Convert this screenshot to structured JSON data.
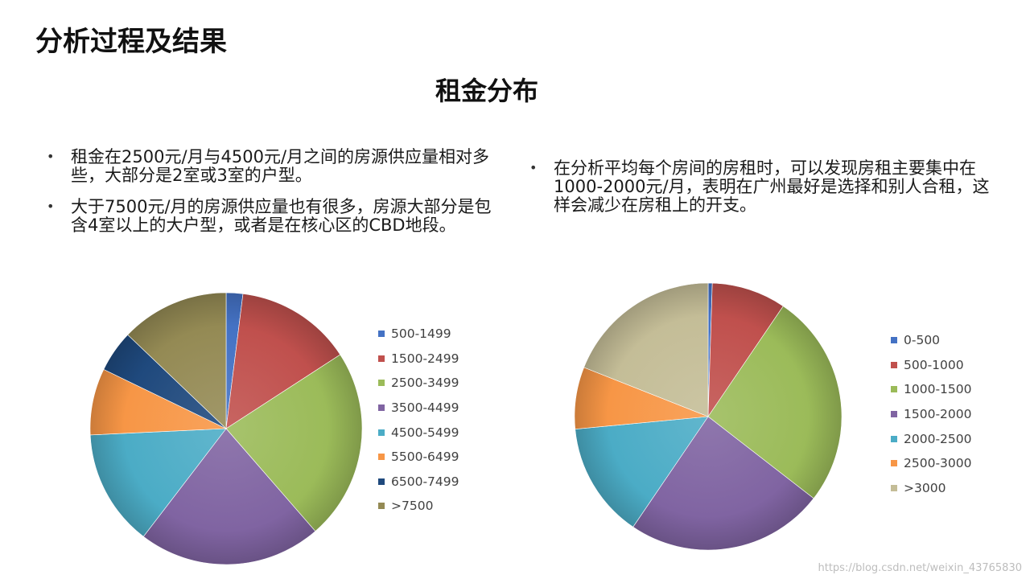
{
  "slide": {
    "title": "分析过程及结果"
  },
  "chart_title": "租金分布",
  "bullets_left": [
    "租金在2500元/月与4500元/月之间的房源供应量相对多些，大部分是2室或3室的户型。",
    "大于7500元/月的房源供应量也有很多，房源大部分是包含4室以上的大户型，或者是在核心区的CBD地段。"
  ],
  "bullets_right": [
    "在分析平均每个房间的房租时，可以发现房租主要集中在1000-2000元/月，表明在广州最好是选择和别人合租，这样会减少在房租上的开支。"
  ],
  "bullet_symbol": "•",
  "watermark": "https://blog.csdn.net/weixin_43765830",
  "chart_data": [
    {
      "type": "pie",
      "title": "",
      "categories": [
        "500-1499",
        "1500-2499",
        "2500-3499",
        "3500-4499",
        "4500-5499",
        "5500-6499",
        "6500-7499",
        ">7500"
      ],
      "values": [
        2,
        14,
        23,
        22,
        14,
        8,
        5,
        13
      ],
      "colors": [
        "#4472C4",
        "#C0504D",
        "#9BBB59",
        "#8064A2",
        "#4BACC6",
        "#F79646",
        "#1F497D",
        "#948A54"
      ],
      "legend_position": "right"
    },
    {
      "type": "pie",
      "title": "",
      "categories": [
        "0-500",
        "500-1000",
        "1000-1500",
        "1500-2000",
        "2000-2500",
        "2500-3000",
        ">3000"
      ],
      "values": [
        0.5,
        9,
        26,
        24,
        14,
        7.5,
        19
      ],
      "colors": [
        "#4472C4",
        "#C0504D",
        "#9BBB59",
        "#8064A2",
        "#4BACC6",
        "#F79646",
        "#C4BD97"
      ],
      "legend_position": "right"
    }
  ]
}
